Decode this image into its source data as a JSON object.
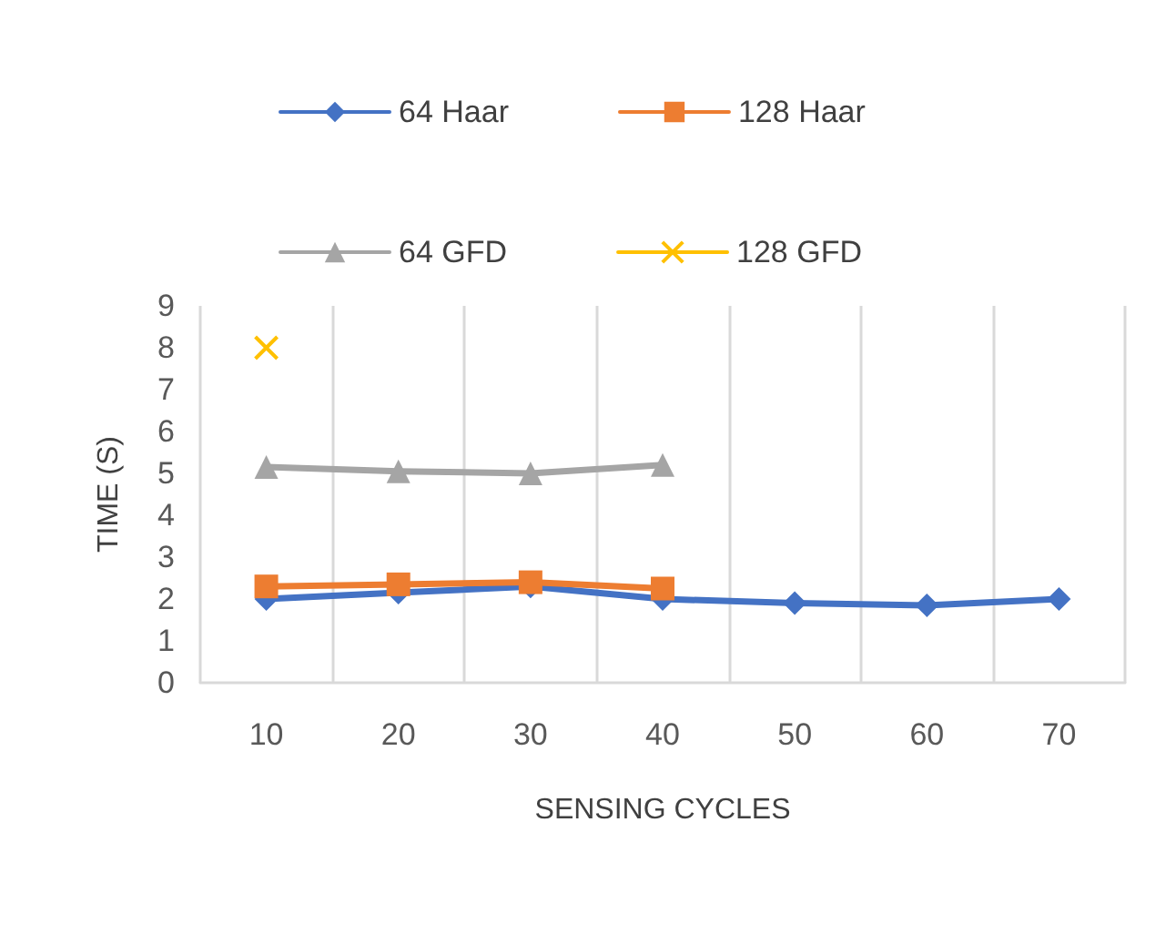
{
  "chart_data": {
    "type": "line",
    "xlabel": "SENSING CYCLES",
    "ylabel": "TIME (S)",
    "categories": [
      "10",
      "20",
      "30",
      "40",
      "50",
      "60",
      "70"
    ],
    "ylim": [
      0,
      9
    ],
    "yticks": [
      0,
      1,
      2,
      3,
      4,
      5,
      6,
      7,
      8,
      9
    ],
    "grid": "x",
    "legend": "top",
    "series": [
      {
        "name": "64 Haar",
        "color": "#4472c4",
        "marker": "diamond",
        "values": [
          2.0,
          2.15,
          2.3,
          2.0,
          1.9,
          1.85,
          2.0
        ]
      },
      {
        "name": "128 Haar",
        "color": "#ed7d31",
        "marker": "square",
        "values": [
          2.3,
          2.35,
          2.4,
          2.25,
          null,
          null,
          null
        ]
      },
      {
        "name": "64 GFD",
        "color": "#a5a5a5",
        "marker": "triangle",
        "values": [
          5.15,
          5.05,
          5.0,
          5.2,
          null,
          null,
          null
        ]
      },
      {
        "name": "128 GFD",
        "color": "#ffc000",
        "marker": "cross",
        "values": [
          8,
          null,
          null,
          null,
          null,
          null,
          null
        ]
      }
    ]
  }
}
